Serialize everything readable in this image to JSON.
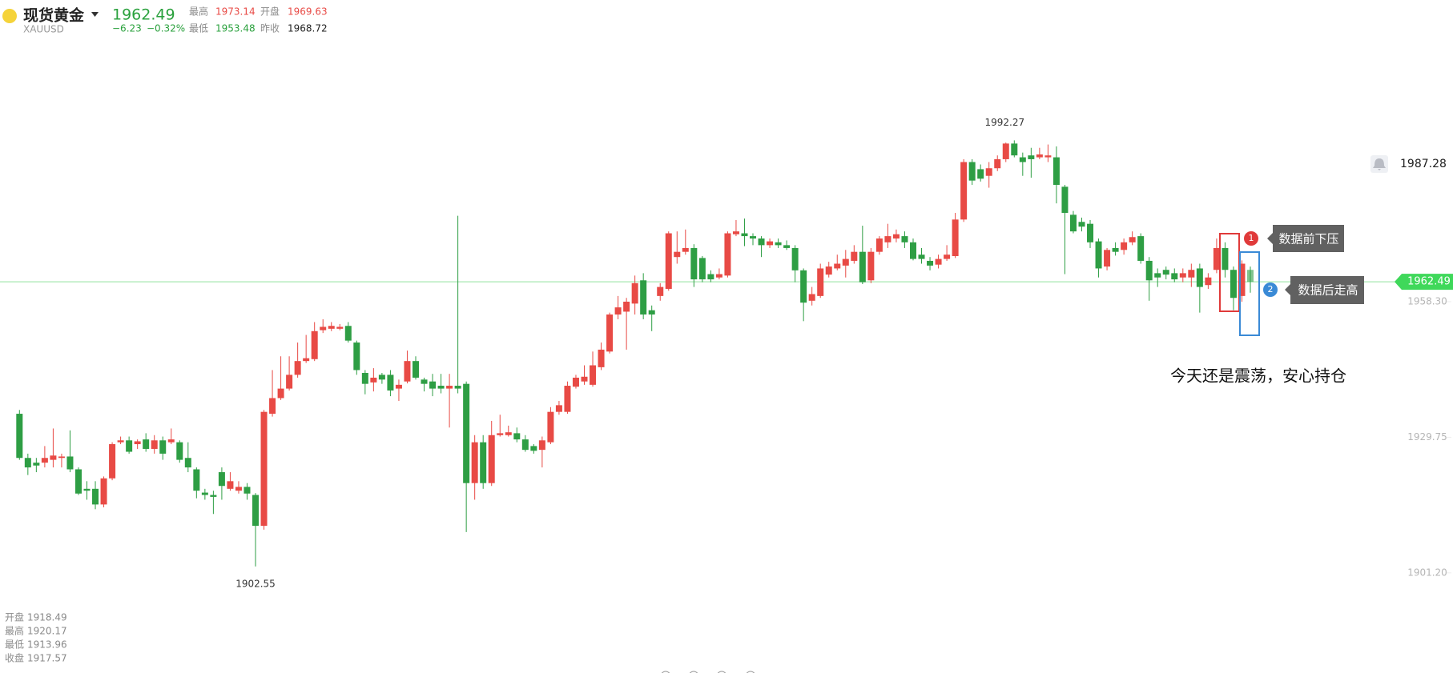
{
  "header": {
    "name": "现货黄金",
    "symbol": "XAUUSD",
    "price": "1962.49",
    "change": "−6.23",
    "change_pct": "−0.32%",
    "stats": [
      {
        "label": "最高",
        "value": "1973.14"
      },
      {
        "label": "开盘",
        "value": "1969.63"
      },
      {
        "label": "最低",
        "value": "1953.48"
      },
      {
        "label": "昨收",
        "value": "1968.72"
      }
    ]
  },
  "ohlc_info": [
    {
      "label": "开盘",
      "value": "1918.49"
    },
    {
      "label": "最高",
      "value": "1920.17"
    },
    {
      "label": "最低",
      "value": "1913.96"
    },
    {
      "label": "收盘",
      "value": "1917.57"
    }
  ],
  "annotations": [
    {
      "badge": "1",
      "text": "数据前下压"
    },
    {
      "badge": "2",
      "text": "数据后走高"
    },
    {
      "text": "今天还是震荡，安心持仓"
    }
  ],
  "chart_data": {
    "type": "candlestick",
    "up_color": "#e84a45",
    "down_color": "#2e9e44",
    "ylim": [
      1885,
      2015
    ],
    "yticks": [
      {
        "value": 1901.2,
        "label": "1901.20"
      },
      1929.75,
      {
        "value": 1958.3,
        "label": "1958.30"
      }
    ],
    "last_price": 1962.49,
    "alert_price": 1987.28,
    "max_label": 1992.27,
    "min_label": 1902.55,
    "open": [
      1934.7,
      1925.4,
      1924.4,
      1924.4,
      1925.0,
      1925.4,
      1925.7,
      1923.0,
      1918.9,
      1918.9,
      1915.6,
      1921.1,
      1928.7,
      1929.1,
      1928.3,
      1929.3,
      1927.3,
      1929.1,
      1928.7,
      1928.7,
      1925.4,
      1923.0,
      1918.1,
      1917.6,
      1922.4,
      1918.9,
      1918.5,
      1919.3,
      1917.6,
      1911.1,
      1934.7,
      1938.0,
      1940.0,
      1942.9,
      1945.8,
      1946.2,
      1952.3,
      1952.6,
      1952.6,
      1953.2,
      1949.7,
      1943.3,
      1941.3,
      1942.9,
      1942.9,
      1940.0,
      1941.5,
      1945.8,
      1941.9,
      1941.5,
      1940.6,
      1940.0,
      1940.6,
      1941.0,
      1920.1,
      1928.7,
      1920.1,
      1930.2,
      1930.2,
      1930.6,
      1929.3,
      1927.9,
      1927.1,
      1928.7,
      1935.1,
      1935.1,
      1940.4,
      1941.5,
      1940.8,
      1944.5,
      1947.8,
      1955.6,
      1956.2,
      1957.9,
      1962.8,
      1956.5,
      1959.5,
      1961.0,
      1967.7,
      1968.8,
      1969.6,
      1967.5,
      1964.1,
      1963.4,
      1963.8,
      1972.5,
      1972.7,
      1972.1,
      1971.6,
      1970.2,
      1970.8,
      1970.2,
      1969.6,
      1964.9,
      1958.5,
      1959.5,
      1964.0,
      1965.3,
      1965.9,
      1966.9,
      1968.8,
      1962.8,
      1968.8,
      1970.8,
      1971.6,
      1972.1,
      1970.8,
      1968.2,
      1966.9,
      1966.1,
      1967.3,
      1967.9,
      1975.6,
      1987.7,
      1986.2,
      1984.8,
      1986.4,
      1988.3,
      1991.6,
      1988.7,
      1989.1,
      1988.7,
      1988.7,
      1988.7,
      1982.5,
      1976.6,
      1975.1,
      1974.7,
      1971.0,
      1965.7,
      1969.6,
      1969.2,
      1970.8,
      1972.1,
      1966.9,
      1964.3,
      1965.0,
      1964.3,
      1963.4,
      1963.4,
      1965.3,
      1961.8,
      1965.0,
      1969.6,
      1965.0,
      1959.5,
      1965.0
    ],
    "high": [
      1935.5,
      1926.3,
      1925.4,
      1927.9,
      1931.6,
      1926.3,
      1931.2,
      1923.4,
      1920.5,
      1920.5,
      1921.5,
      1928.7,
      1929.9,
      1929.9,
      1929.3,
      1930.6,
      1930.2,
      1929.9,
      1931.6,
      1929.1,
      1928.7,
      1923.4,
      1918.9,
      1918.5,
      1923.4,
      1922.4,
      1920.5,
      1920.1,
      1918.0,
      1935.5,
      1943.9,
      1946.8,
      1946.8,
      1949.7,
      1951.3,
      1954.0,
      1954.6,
      1954.0,
      1953.6,
      1954.0,
      1950.1,
      1943.9,
      1944.3,
      1943.3,
      1943.9,
      1941.9,
      1948.0,
      1946.8,
      1942.3,
      1943.1,
      1943.1,
      1943.1,
      1976.4,
      1941.5,
      1930.2,
      1930.2,
      1933.2,
      1934.5,
      1932.2,
      1931.8,
      1930.2,
      1928.3,
      1929.9,
      1936.1,
      1937.4,
      1941.5,
      1942.9,
      1944.9,
      1947.8,
      1949.7,
      1956.0,
      1959.5,
      1959.1,
      1963.8,
      1964.3,
      1957.5,
      1962.2,
      1973.1,
      1973.1,
      1973.5,
      1970.4,
      1967.9,
      1964.9,
      1965.3,
      1973.1,
      1975.5,
      1975.8,
      1972.7,
      1972.1,
      1971.6,
      1971.6,
      1971.2,
      1970.2,
      1965.3,
      1961.4,
      1966.3,
      1966.7,
      1968.2,
      1969.2,
      1970.2,
      1974.3,
      1969.6,
      1972.1,
      1974.7,
      1973.5,
      1973.1,
      1971.6,
      1969.6,
      1967.7,
      1968.2,
      1970.2,
      1977.0,
      1988.3,
      1988.3,
      1987.2,
      1987.7,
      1989.1,
      1991.8,
      1992.27,
      1989.7,
      1990.7,
      1990.7,
      1991.4,
      1991.0,
      1982.9,
      1977.4,
      1976.0,
      1975.5,
      1971.6,
      1969.6,
      1970.8,
      1971.6,
      1973.1,
      1972.7,
      1967.7,
      1965.3,
      1965.7,
      1965.3,
      1965.3,
      1966.3,
      1966.3,
      1964.3,
      1971.6,
      1970.8,
      1965.7,
      1967.0,
      1965.7
    ],
    "low": [
      1925.0,
      1921.8,
      1922.4,
      1923.4,
      1923.4,
      1923.4,
      1922.4,
      1917.6,
      1916.6,
      1914.6,
      1915.0,
      1920.7,
      1928.3,
      1926.3,
      1927.3,
      1926.7,
      1926.3,
      1925.0,
      1928.3,
      1924.4,
      1922.4,
      1916.9,
      1916.6,
      1913.6,
      1916.6,
      1918.5,
      1917.9,
      1916.6,
      1902.55,
      1910.3,
      1934.1,
      1937.6,
      1939.6,
      1942.3,
      1945.4,
      1945.8,
      1951.7,
      1952.1,
      1952.3,
      1949.7,
      1942.9,
      1938.8,
      1939.4,
      1941.0,
      1938.4,
      1937.4,
      1941.1,
      1941.9,
      1939.4,
      1938.4,
      1939.0,
      1931.8,
      1939.0,
      1909.8,
      1916.6,
      1918.9,
      1919.5,
      1929.9,
      1929.9,
      1928.7,
      1926.7,
      1926.3,
      1923.4,
      1928.3,
      1934.5,
      1934.7,
      1940.0,
      1940.8,
      1940.4,
      1943.9,
      1947.4,
      1954.6,
      1948.2,
      1955.6,
      1954.6,
      1952.1,
      1958.5,
      1960.6,
      1966.3,
      1968.2,
      1961.4,
      1962.4,
      1962.4,
      1963.0,
      1963.4,
      1972.1,
      1970.0,
      1970.2,
      1967.7,
      1969.6,
      1969.6,
      1969.2,
      1962.4,
      1954.2,
      1957.5,
      1959.1,
      1963.4,
      1964.9,
      1963.4,
      1966.3,
      1962.0,
      1962.2,
      1968.2,
      1969.6,
      1970.8,
      1969.6,
      1967.0,
      1966.3,
      1964.9,
      1965.3,
      1966.9,
      1967.5,
      1975.1,
      1982.9,
      1983.6,
      1982.3,
      1985.8,
      1987.7,
      1988.7,
      1984.8,
      1984.4,
      1988.3,
      1987.7,
      1979.0,
      1964.1,
      1972.7,
      1973.1,
      1969.6,
      1963.4,
      1964.9,
      1968.0,
      1968.2,
      1970.2,
      1966.3,
      1958.5,
      1961.4,
      1963.0,
      1962.4,
      1962.4,
      1961.4,
      1956.0,
      1961.0,
      1964.3,
      1963.4,
      1956.5,
      1958.3,
      1960.2
    ],
    "close": [
      1925.4,
      1923.4,
      1923.8,
      1925.4,
      1925.9,
      1925.7,
      1923.0,
      1917.9,
      1918.5,
      1915.6,
      1921.1,
      1928.3,
      1929.1,
      1926.7,
      1928.9,
      1927.3,
      1929.1,
      1926.3,
      1929.3,
      1925.0,
      1923.4,
      1918.5,
      1917.6,
      1917.2,
      1919.5,
      1920.5,
      1919.3,
      1917.9,
      1911.1,
      1935.1,
      1938.0,
      1940.0,
      1942.9,
      1945.8,
      1946.4,
      1952.1,
      1953.0,
      1953.2,
      1953.0,
      1950.1,
      1943.9,
      1941.0,
      1942.3,
      1941.9,
      1939.6,
      1940.8,
      1945.8,
      1942.3,
      1941.0,
      1940.0,
      1940.0,
      1940.6,
      1940.0,
      1920.1,
      1928.7,
      1920.1,
      1930.2,
      1930.6,
      1930.8,
      1929.3,
      1927.1,
      1926.9,
      1929.1,
      1935.1,
      1936.5,
      1940.6,
      1942.3,
      1942.5,
      1944.9,
      1948.2,
      1955.6,
      1957.1,
      1958.3,
      1962.2,
      1955.6,
      1955.6,
      1961.4,
      1972.7,
      1968.8,
      1969.6,
      1963.0,
      1963.0,
      1963.0,
      1964.1,
      1972.7,
      1973.1,
      1972.1,
      1971.6,
      1970.2,
      1971.0,
      1970.2,
      1969.6,
      1964.9,
      1958.1,
      1959.9,
      1965.3,
      1965.7,
      1966.3,
      1967.3,
      1968.8,
      1962.4,
      1968.8,
      1971.6,
      1972.1,
      1972.5,
      1970.8,
      1967.3,
      1967.3,
      1965.9,
      1967.3,
      1968.2,
      1975.6,
      1987.7,
      1983.8,
      1984.2,
      1986.4,
      1988.3,
      1991.6,
      1989.1,
      1987.7,
      1988.3,
      1989.3,
      1989.1,
      1982.9,
      1977.0,
      1973.1,
      1974.1,
      1970.8,
      1965.3,
      1969.2,
      1968.8,
      1970.8,
      1971.9,
      1966.9,
      1962.8,
      1963.4,
      1964.0,
      1963.0,
      1964.3,
      1965.0,
      1961.4,
      1963.4,
      1969.6,
      1965.0,
      1959.1,
      1966.3,
      1962.49
    ]
  }
}
